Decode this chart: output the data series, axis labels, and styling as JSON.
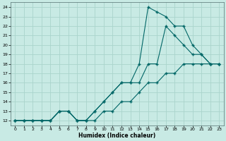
{
  "bg_color": "#c8eae4",
  "line_color": "#006666",
  "grid_color": "#aad4cc",
  "xlabel": "Humidex (Indice chaleur)",
  "xlim": [
    -0.5,
    23.5
  ],
  "ylim": [
    11.5,
    24.5
  ],
  "xticks": [
    0,
    1,
    2,
    3,
    4,
    5,
    6,
    7,
    8,
    9,
    10,
    11,
    12,
    13,
    14,
    15,
    16,
    17,
    18,
    19,
    20,
    21,
    22,
    23
  ],
  "yticks": [
    12,
    13,
    14,
    15,
    16,
    17,
    18,
    19,
    20,
    21,
    22,
    23,
    24
  ],
  "line1_x": [
    0,
    1,
    2,
    3,
    4,
    5,
    6,
    7,
    8,
    9,
    10,
    11,
    12,
    13,
    14,
    15,
    16,
    17,
    18,
    19,
    20,
    21,
    22,
    23
  ],
  "line1_y": [
    12,
    12,
    12,
    12,
    12,
    13,
    13,
    12,
    12,
    12,
    13,
    13,
    14,
    14,
    15,
    16,
    16,
    17,
    17,
    18,
    18,
    18,
    18,
    18
  ],
  "line2_x": [
    0,
    1,
    2,
    3,
    4,
    5,
    6,
    7,
    8,
    9,
    10,
    11,
    12,
    13,
    14,
    15,
    16,
    17,
    18,
    19,
    20,
    21,
    22,
    23
  ],
  "line2_y": [
    12,
    12,
    12,
    12,
    12,
    13,
    13,
    12,
    12,
    13,
    14,
    15,
    16,
    16,
    16,
    18,
    18,
    22,
    21,
    20,
    19,
    19,
    18,
    18
  ],
  "line3_x": [
    0,
    1,
    2,
    3,
    4,
    5,
    6,
    7,
    8,
    9,
    10,
    11,
    12,
    13,
    14,
    15,
    16,
    17,
    18,
    19,
    20,
    21,
    22,
    23
  ],
  "line3_y": [
    12,
    12,
    12,
    12,
    12,
    13,
    13,
    12,
    12,
    13,
    14,
    15,
    16,
    16,
    18,
    24,
    23.5,
    23,
    22,
    22,
    20,
    19,
    18,
    18
  ]
}
